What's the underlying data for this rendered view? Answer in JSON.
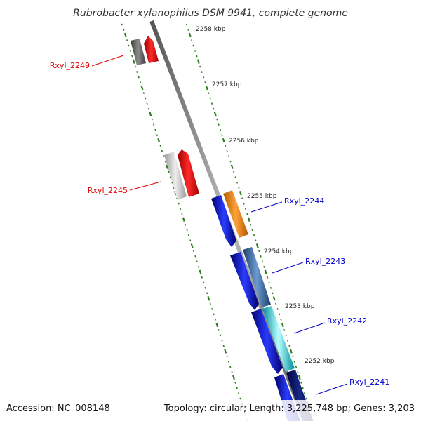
{
  "title": "Rubrobacter xylanophilus DSM 9941, complete genome",
  "footer": {
    "accession": "Accession: NC_008148",
    "summary": "Topology: circular; Length: 3,225,748 bp; Genes: 3,203"
  },
  "colors": {
    "left_strand_label": "#dd0000",
    "right_strand_label": "#0000cc",
    "ruler_tick": "#2e7d1f",
    "backbone": "#8a8a8a"
  },
  "ruler": {
    "labels": [
      "2258 kbp",
      "2257 kbp",
      "2256 kbp",
      "2255 kbp",
      "2254 kbp",
      "2253 kbp",
      "2252 kbp"
    ]
  },
  "genes": {
    "left": [
      {
        "name": "Rxyl_2249"
      },
      {
        "name": "Rxyl_2245"
      }
    ],
    "right": [
      {
        "name": "Rxyl_2244"
      },
      {
        "name": "Rxyl_2243"
      },
      {
        "name": "Rxyl_2242"
      },
      {
        "name": "Rxyl_2241"
      }
    ]
  }
}
